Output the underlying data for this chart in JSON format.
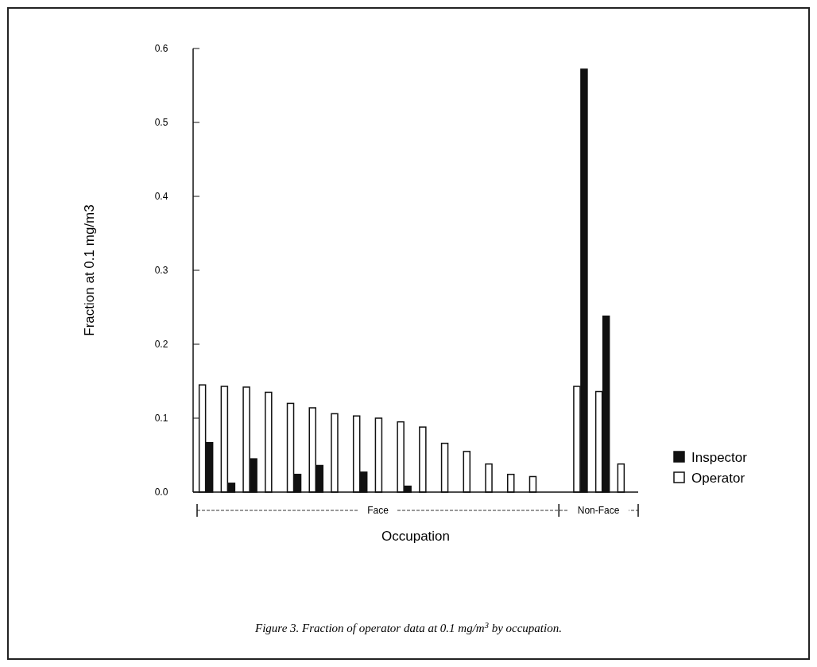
{
  "chart_data": {
    "type": "bar",
    "categories": [
      null,
      null,
      null,
      null,
      null,
      null,
      null,
      null,
      null,
      null,
      null,
      null,
      null,
      null,
      null,
      null,
      null,
      null,
      null,
      null
    ],
    "series": [
      {
        "name": "Operator",
        "color": "#ffffff",
        "values": [
          0.145,
          0.143,
          0.142,
          0.135,
          0.12,
          0.114,
          0.106,
          0.103,
          0.1,
          0.095,
          0.088,
          0.066,
          0.055,
          0.038,
          0.024,
          0.021,
          null,
          0.143,
          0.136,
          0.038
        ]
      },
      {
        "name": "Inspector",
        "color": "#111111",
        "values": [
          0.067,
          0.012,
          0.045,
          null,
          0.024,
          0.036,
          null,
          0.027,
          null,
          0.008,
          null,
          null,
          null,
          null,
          null,
          null,
          null,
          0.572,
          0.238,
          null
        ]
      }
    ],
    "ylabel": "Fraction at 0.1 mg/m3",
    "xlabel": "Occupation",
    "ylim": [
      0,
      0.6
    ],
    "yticks": [
      {
        "value": 0,
        "label": "0.0"
      },
      0.1,
      0.2,
      0.3,
      0.4,
      0.5,
      0.6
    ],
    "legend": "right",
    "grid": false,
    "annotations": [
      "Face",
      "Non-Face",
      "Figure 3.  Fraction of operator data at 0.1 mg/m$^{3}$ by occupation."
    ]
  }
}
